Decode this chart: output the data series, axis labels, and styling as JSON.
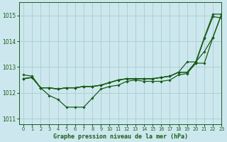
{
  "title": "Graphe pression niveau de la mer (hPa)",
  "background_color": "#cce8ee",
  "grid_color": "#aacccc",
  "line_color": "#1a5c1a",
  "xlim": [
    -0.5,
    23
  ],
  "ylim": [
    1010.8,
    1015.5
  ],
  "yticks": [
    1011,
    1012,
    1013,
    1014,
    1015
  ],
  "xticks": [
    0,
    1,
    2,
    3,
    4,
    5,
    6,
    7,
    8,
    9,
    10,
    11,
    12,
    13,
    14,
    15,
    16,
    17,
    18,
    19,
    20,
    21,
    22,
    23
  ],
  "series": [
    [
      1012.7,
      1012.65,
      1012.2,
      1011.9,
      1011.75,
      1011.45,
      1011.45,
      1011.45,
      1011.8,
      1012.15,
      1012.25,
      1012.3,
      1012.45,
      1012.5,
      1012.45,
      1012.45,
      1012.45,
      1012.5,
      1012.7,
      1012.75,
      1013.15,
      1014.1,
      1014.95,
      1014.9
    ],
    [
      1012.55,
      1012.6,
      1012.2,
      1012.2,
      1012.15,
      1012.2,
      1012.2,
      1012.25,
      1012.25,
      1012.3,
      1012.4,
      1012.5,
      1012.55,
      1012.55,
      1012.55,
      1012.55,
      1012.6,
      1012.65,
      1012.8,
      1013.2,
      1013.2,
      1013.6,
      1014.15,
      1015.05
    ],
    [
      1012.55,
      1012.6,
      1012.2,
      1012.2,
      1012.15,
      1012.2,
      1012.2,
      1012.25,
      1012.25,
      1012.3,
      1012.4,
      1012.5,
      1012.55,
      1012.55,
      1012.55,
      1012.55,
      1012.6,
      1012.65,
      1012.8,
      1012.8,
      1013.2,
      1014.15,
      1015.05,
      1015.05
    ],
    [
      1012.55,
      1012.6,
      1012.2,
      1012.2,
      1012.15,
      1012.2,
      1012.2,
      1012.25,
      1012.25,
      1012.3,
      1012.4,
      1012.5,
      1012.55,
      1012.55,
      1012.55,
      1012.55,
      1012.6,
      1012.65,
      1012.8,
      1012.8,
      1013.15,
      1013.15,
      1014.15,
      1015.05
    ]
  ]
}
